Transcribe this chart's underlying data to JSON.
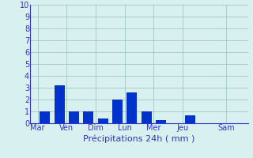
{
  "bars": [
    {
      "x": 1,
      "height": 1.0
    },
    {
      "x": 2,
      "height": 3.2
    },
    {
      "x": 3,
      "height": 1.0
    },
    {
      "x": 4,
      "height": 1.0
    },
    {
      "x": 5,
      "height": 0.4
    },
    {
      "x": 6,
      "height": 2.0
    },
    {
      "x": 7,
      "height": 2.6
    },
    {
      "x": 8,
      "height": 1.0
    },
    {
      "x": 9,
      "height": 0.3
    },
    {
      "x": 11,
      "height": 0.7
    }
  ],
  "xlabel": "Précipitations 24h ( mm )",
  "ylim": [
    0,
    10
  ],
  "yticks": [
    0,
    1,
    2,
    3,
    4,
    5,
    6,
    7,
    8,
    9,
    10
  ],
  "xtick_labels": [
    "Mar",
    "Ven",
    "Dim",
    "Lun",
    "Mer",
    "Jeu",
    "Sam"
  ],
  "xtick_positions": [
    0.5,
    2.5,
    4.5,
    6.5,
    8.5,
    10.5,
    13.5
  ],
  "background_color": "#d8f0f0",
  "grid_color": "#99bbbb",
  "bar_color": "#0033cc",
  "axis_color": "#3333cc",
  "text_color": "#3333cc",
  "xlabel_fontsize": 8,
  "tick_fontsize": 7,
  "bar_width": 0.7,
  "xlim": [
    0,
    15
  ]
}
